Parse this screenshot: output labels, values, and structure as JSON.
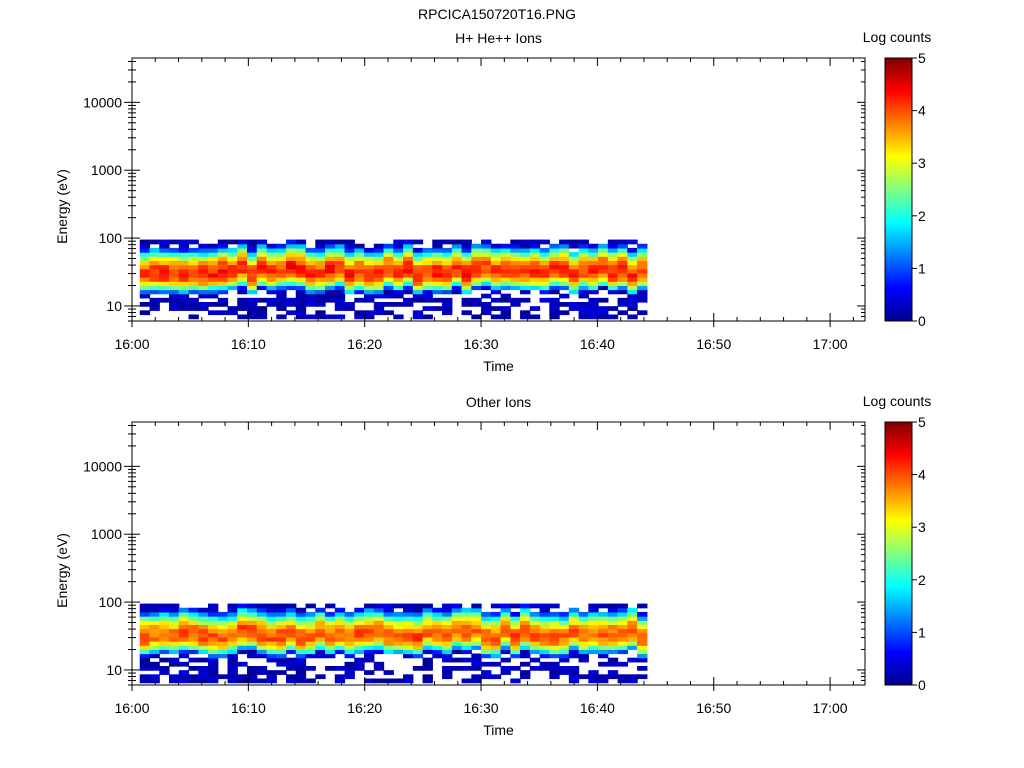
{
  "title": "RPCICA150720T16.PNG",
  "chart_data": [
    {
      "type": "heatmap",
      "title": "H+ He++ Ions",
      "xlabel": "Time",
      "ylabel": "Energy (eV)",
      "x_ticks": [
        "16:00",
        "16:10",
        "16:20",
        "16:30",
        "16:40",
        "16:50",
        "17:00"
      ],
      "xlim": [
        "16:00",
        "17:03"
      ],
      "data_x_range": [
        "16:00:40",
        "16:44:15"
      ],
      "y_scale": "log",
      "ylim": [
        6,
        45000
      ],
      "y_ticks": [
        "10",
        "100",
        "1000",
        "10000"
      ],
      "data_energy_range_eV": [
        6.5,
        95
      ],
      "peak_energy_eV": 32,
      "peak_log_counts": 4.2,
      "colorbar": {
        "label": "Log counts",
        "range": [
          0,
          5
        ],
        "ticks": [
          "0",
          "1",
          "2",
          "3",
          "4",
          "5"
        ]
      },
      "grid": false
    },
    {
      "type": "heatmap",
      "title": "Other Ions",
      "xlabel": "Time",
      "ylabel": "Energy (eV)",
      "x_ticks": [
        "16:00",
        "16:10",
        "16:20",
        "16:30",
        "16:40",
        "16:50",
        "17:00"
      ],
      "xlim": [
        "16:00",
        "17:03"
      ],
      "data_x_range": [
        "16:00:40",
        "16:44:15"
      ],
      "y_scale": "log",
      "ylim": [
        6,
        45000
      ],
      "y_ticks": [
        "10",
        "100",
        "1000",
        "10000"
      ],
      "data_energy_range_eV": [
        6.5,
        95
      ],
      "peak_energy_eV": 33,
      "peak_log_counts": 4.0,
      "colorbar": {
        "label": "Log counts",
        "range": [
          0,
          5
        ],
        "ticks": [
          "0",
          "1",
          "2",
          "3",
          "4",
          "5"
        ]
      },
      "grid": false
    }
  ],
  "colors": {
    "jet_low": "#00008f",
    "jet_high": "#800000",
    "axes": "#000000"
  }
}
